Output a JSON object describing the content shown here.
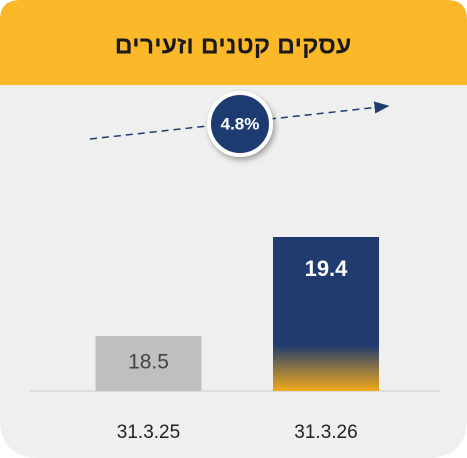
{
  "chart_data": {
    "type": "bar",
    "title": "עסקים קטנים וזעירים",
    "categories": [
      "31.3.25",
      "31.3.26"
    ],
    "values": [
      18.5,
      19.4
    ],
    "colors": [
      "#bfbfbf",
      "#1f3b70"
    ],
    "ylim": [
      18,
      20.7
    ],
    "annotation": "4.8%"
  }
}
